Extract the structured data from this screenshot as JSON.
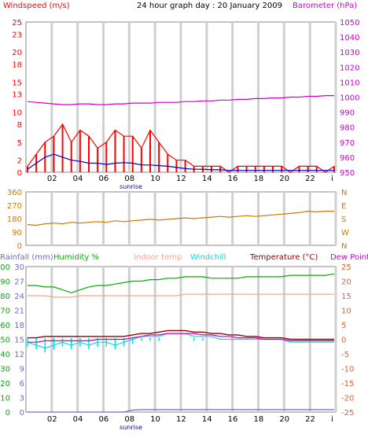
{
  "title": "24 hour graph day : 20 January 2009",
  "colors": {
    "windspeed": "#ff0000",
    "windavg": "#0000c0",
    "barometer": "#cc00cc",
    "winddir": "#cc7a00",
    "rainfall": "#6a6ad0",
    "humidity": "#00b000",
    "indoor": "#f0a890",
    "windchill": "#00e0e0",
    "temperature": "#990000",
    "dewpoint": "#cc00cc",
    "grid": "#d0d0d0",
    "axis": "#0000ff"
  },
  "chart_data": [
    {
      "type": "line",
      "panel": "wind-barometer",
      "title": "24 hour graph day : 20 January 2009",
      "ylabel_left": "Windspeed (m/s)",
      "ylabel_right": "Barometer (hPa)",
      "xticks": [
        "02",
        "04",
        "06",
        "08",
        "10",
        "12",
        "14",
        "16",
        "18",
        "20",
        "22",
        "i"
      ],
      "x_annotation": "sunrise",
      "ylim_left": [
        0,
        25
      ],
      "yticks_left": [
        0,
        2,
        5,
        8,
        10,
        13,
        15,
        18,
        20,
        23,
        25
      ],
      "ylim_right": [
        950,
        1050
      ],
      "yticks_right": [
        950,
        960,
        970,
        980,
        990,
        1000,
        1010,
        1020,
        1030,
        1040,
        1050
      ],
      "grid": true,
      "series": [
        {
          "name": "Windspeed (m/s)",
          "axis": "left",
          "values": [
            1,
            3,
            5,
            6,
            8,
            5,
            7,
            6,
            4,
            5,
            7,
            6,
            6,
            4,
            7,
            5,
            3,
            2,
            2,
            1,
            1,
            1,
            1,
            0,
            1,
            1,
            1,
            1,
            1,
            1,
            0,
            1,
            1,
            1,
            0,
            1
          ]
        },
        {
          "name": "Wind average",
          "axis": "left",
          "values": [
            0.5,
            1.5,
            2.5,
            3,
            2.5,
            2,
            1.8,
            1.5,
            1.5,
            1.3,
            1.5,
            1.6,
            1.5,
            1.2,
            1.2,
            1.1,
            1,
            0.8,
            0.6,
            0.5,
            0.5,
            0.4,
            0.4,
            0.3,
            0.3,
            0.3,
            0.3,
            0.3,
            0.3,
            0.3,
            0.3,
            0.3,
            0.3,
            0.3,
            0.3,
            0.3
          ]
        },
        {
          "name": "Barometer (hPa)",
          "axis": "right",
          "values": [
            997,
            996.5,
            996,
            995.5,
            995,
            995,
            995.5,
            995.5,
            995,
            995,
            995.5,
            995.5,
            996,
            996,
            996,
            996.5,
            996.5,
            996.5,
            997,
            997,
            997.5,
            997.5,
            998,
            998,
            998.5,
            998.5,
            999,
            999,
            999.5,
            999.5,
            1000,
            1000,
            1000.5,
            1000.5,
            1001,
            1001
          ]
        }
      ]
    },
    {
      "type": "line",
      "panel": "wind-direction",
      "ylim": [
        0,
        360
      ],
      "yticks": [
        0,
        90,
        180,
        270,
        360
      ],
      "yticks_right": [
        "N",
        "W",
        "S",
        "E",
        "N"
      ],
      "grid": true,
      "series": [
        {
          "name": "Wind direction",
          "values": [
            140,
            135,
            145,
            150,
            145,
            155,
            150,
            155,
            160,
            155,
            165,
            160,
            165,
            170,
            175,
            170,
            175,
            180,
            185,
            180,
            185,
            190,
            195,
            190,
            195,
            200,
            195,
            200,
            205,
            210,
            215,
            220,
            230,
            225,
            230,
            230
          ]
        }
      ]
    },
    {
      "type": "line",
      "panel": "temperature-humidity",
      "ylabel_left_1": "Rainfall (mm)",
      "ylabel_left_2": "Humidity %",
      "legend": [
        "Indoor temp",
        "Windchill",
        "Temperature (°C)",
        "Dew Point"
      ],
      "yticks_rain": [
        0,
        3,
        6,
        9,
        12,
        15,
        18,
        21,
        24,
        27,
        30
      ],
      "yticks_humidity": [
        0,
        10,
        20,
        30,
        40,
        50,
        60,
        70,
        80,
        90,
        100
      ],
      "ylim_right": [
        -25,
        25
      ],
      "yticks_right": [
        -25,
        -20,
        -15,
        -10,
        -5,
        0,
        5,
        10,
        15,
        20,
        25
      ],
      "xticks": [
        "02",
        "04",
        "06",
        "08",
        "10",
        "12",
        "14",
        "16",
        "18",
        "20",
        "22",
        "i"
      ],
      "x_annotation": "sunrise",
      "grid": true,
      "series": [
        {
          "name": "Humidity %",
          "axis": "humidity",
          "values": [
            87,
            87,
            86,
            86,
            84,
            82,
            84,
            86,
            87,
            87,
            88,
            89,
            90,
            90,
            91,
            91,
            92,
            92,
            93,
            93,
            93,
            92,
            92,
            92,
            92,
            93,
            93,
            93,
            93,
            93,
            94,
            94,
            94,
            94,
            94,
            95
          ]
        },
        {
          "name": "Indoor temp",
          "axis": "right",
          "values": [
            15,
            15,
            15,
            14.5,
            14.5,
            14.5,
            15,
            15,
            15,
            15,
            15,
            15,
            15,
            15,
            15,
            15,
            15,
            15,
            15.5,
            15.5,
            15.5,
            15.5,
            15.5,
            15.5,
            15.5,
            15.5,
            15.5,
            15.5,
            15.5,
            15.5,
            15.5,
            15.5,
            15.5,
            15.5,
            15.5,
            15.5
          ]
        },
        {
          "name": "Windchill",
          "axis": "right",
          "values": [
            -1,
            -2,
            -3,
            -2,
            -1,
            -2,
            -1,
            -2,
            -1,
            -1,
            -2,
            -1,
            0,
            1,
            1,
            1,
            2,
            2,
            2,
            1,
            1,
            1,
            0,
            0,
            0,
            0,
            0,
            0,
            0,
            0,
            -1,
            -1,
            -1,
            -1,
            -1,
            -1
          ]
        },
        {
          "name": "Temperature (°C)",
          "axis": "right",
          "values": [
            0.5,
            0.5,
            1,
            1,
            1,
            1,
            1,
            1,
            1,
            1,
            1,
            1,
            1.5,
            2,
            2,
            2.5,
            3,
            3,
            3,
            2.5,
            2.5,
            2,
            2,
            1.5,
            1.5,
            1,
            1,
            0.5,
            0.5,
            0.5,
            0,
            0,
            0,
            0,
            0,
            0
          ]
        },
        {
          "name": "Dew Point",
          "axis": "right",
          "values": [
            -1,
            -1,
            -0.5,
            -0.5,
            -0.5,
            -0.5,
            -0.5,
            -0.5,
            0,
            0,
            0,
            0,
            0.5,
            1,
            1.5,
            1.5,
            2,
            2,
            2,
            2,
            1.5,
            1.5,
            1,
            1,
            0.5,
            0.5,
            0.5,
            0,
            0,
            0,
            -0.5,
            -0.5,
            -0.5,
            -0.5,
            -0.5,
            -0.5
          ]
        },
        {
          "name": "Rainfall (mm)",
          "axis": "rain",
          "values": [
            0,
            0,
            0,
            0,
            0,
            0,
            0,
            0,
            0,
            0,
            0,
            0,
            0.4,
            0.5,
            0.5,
            0.5,
            0.5,
            0.5,
            0.5,
            0.5,
            0.5,
            0.5,
            0.5,
            0.5,
            0.5,
            0.5,
            0.5,
            0.5,
            0.5,
            0.5,
            0.5,
            0.5,
            0.5,
            0.5,
            0.5,
            0.5
          ]
        }
      ]
    }
  ]
}
